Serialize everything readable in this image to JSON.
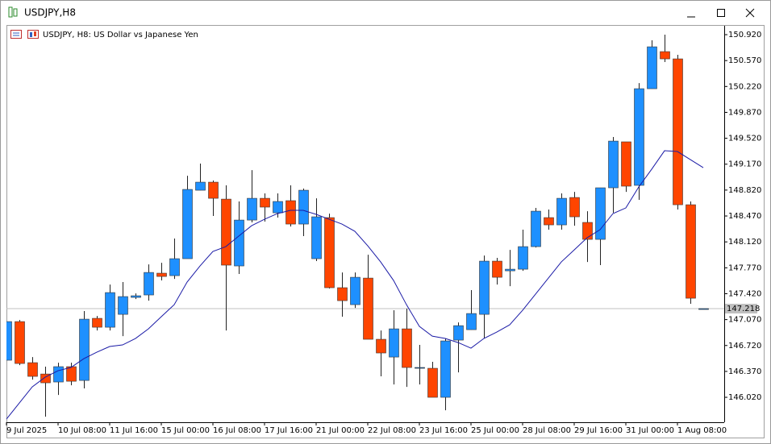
{
  "window_title": "USDJPY,H8",
  "chart_data": {
    "type": "candlestick",
    "title": "USDJPY, H8:  US Dollar vs Japanese Yen",
    "categories": [
      "9 Jul 2025",
      null,
      null,
      null,
      "10 Jul 08:00",
      null,
      null,
      null,
      "11 Jul 16:00",
      null,
      null,
      null,
      "15 Jul 00:00",
      null,
      null,
      null,
      "16 Jul 08:00",
      null,
      null,
      null,
      "17 Jul 16:00",
      null,
      null,
      null,
      "21 Jul 00:00",
      null,
      null,
      null,
      "22 Jul 08:00",
      null,
      null,
      null,
      "23 Jul 16:00",
      null,
      null,
      null,
      "25 Jul 00:00",
      null,
      null,
      null,
      "28 Jul 08:00",
      null,
      null,
      null,
      "29 Jul 16:00",
      null,
      null,
      null,
      "31 Jul 00:00",
      null,
      null,
      null,
      "1 Aug 08:00",
      null,
      null
    ],
    "open": [
      146.521,
      147.043,
      146.488,
      146.335,
      146.227,
      146.434,
      146.248,
      147.087,
      146.967,
      147.141,
      147.37,
      147.403,
      147.697,
      147.664,
      147.893,
      148.818,
      148.927,
      148.698,
      147.795,
      148.415,
      148.709,
      148.513,
      148.677,
      148.361,
      147.893,
      148.448,
      147.501,
      147.272,
      147.631,
      146.804,
      146.564,
      146.945,
      146.423,
      146.412,
      146.02,
      146.793,
      146.934,
      147.141,
      147.86,
      147.729,
      147.751,
      148.056,
      148.448,
      148.35,
      148.72,
      148.383,
      148.154,
      148.851,
      149.472,
      148.884,
      150.19,
      150.691,
      150.593,
      148.622,
      147.218
    ],
    "high": [
      147.043,
      147.065,
      146.564,
      146.434,
      146.488,
      146.488,
      147.185,
      147.119,
      147.544,
      147.577,
      147.424,
      147.816,
      147.838,
      148.165,
      149.014,
      149.178,
      148.949,
      148.884,
      148.666,
      149.09,
      148.775,
      148.775,
      148.884,
      148.84,
      148.709,
      148.502,
      147.707,
      147.707,
      147.947,
      146.923,
      147.196,
      147.218,
      146.728,
      146.499,
      146.815,
      147.032,
      147.468,
      147.936,
      147.904,
      148.012,
      148.285,
      148.579,
      148.557,
      148.775,
      148.796,
      148.535,
      148.851,
      149.537,
      149.472,
      150.266,
      150.844,
      150.92,
      150.648,
      148.666,
      147.218
    ],
    "low": [
      146.521,
      146.455,
      146.259,
      145.758,
      146.052,
      146.183,
      146.14,
      146.923,
      146.923,
      146.847,
      147.348,
      147.326,
      147.599,
      147.62,
      147.893,
      148.818,
      148.47,
      146.923,
      147.686,
      148.383,
      148.394,
      148.448,
      148.328,
      148.198,
      147.86,
      147.49,
      147.109,
      147.228,
      146.804,
      146.303,
      146.194,
      146.161,
      146.194,
      146.02,
      145.845,
      146.357,
      146.934,
      146.815,
      147.544,
      147.522,
      147.729,
      148.045,
      148.285,
      148.285,
      148.339,
      147.849,
      147.806,
      148.513,
      148.796,
      148.688,
      150.19,
      150.55,
      148.557,
      147.283,
      147.218
    ],
    "close": [
      147.043,
      146.477,
      146.303,
      146.216,
      146.434,
      146.237,
      147.076,
      146.967,
      147.435,
      147.381,
      147.392,
      147.707,
      147.653,
      147.893,
      148.829,
      148.927,
      148.709,
      147.806,
      148.415,
      148.709,
      148.59,
      148.666,
      148.361,
      148.818,
      148.459,
      147.501,
      147.326,
      147.642,
      146.804,
      146.619,
      146.945,
      146.423,
      146.423,
      146.02,
      146.782,
      146.988,
      147.152,
      147.86,
      147.642,
      147.751,
      148.056,
      148.535,
      148.35,
      148.709,
      148.459,
      148.154,
      148.851,
      149.482,
      148.873,
      150.19,
      150.756,
      150.593,
      148.622,
      147.359,
      147.218
    ],
    "bull_color": "#1e90ff",
    "bear_color": "#ff4500",
    "ma": {
      "color": "#1a1aa6",
      "values": [
        145.726,
        145.943,
        146.161,
        146.292,
        146.379,
        146.423,
        146.542,
        146.63,
        146.706,
        146.728,
        146.815,
        146.945,
        147.109,
        147.272,
        147.577,
        147.795,
        147.991,
        148.056,
        148.198,
        148.339,
        148.426,
        148.502,
        148.546,
        148.546,
        148.492,
        148.426,
        148.361,
        148.263,
        148.067,
        147.849,
        147.599,
        147.272,
        146.978,
        146.847,
        146.815,
        146.76,
        146.684,
        146.815,
        146.902,
        147.0,
        147.196,
        147.413,
        147.631,
        147.849,
        148.012,
        148.176,
        148.285,
        148.502,
        148.579,
        148.862,
        149.101,
        149.352,
        149.341,
        149.232,
        149.123
      ]
    },
    "current_price": 147.218,
    "ylim": [
      145.683,
      151.04
    ],
    "yticks": [
      {
        "value": 146.02,
        "label": "146.020"
      },
      {
        "value": 146.37,
        "label": "146.370"
      },
      {
        "value": 146.72,
        "label": "146.720"
      },
      {
        "value": 147.07,
        "label": "147.070"
      },
      {
        "value": 147.42,
        "label": "147.420"
      },
      {
        "value": 147.77,
        "label": "147.770"
      },
      {
        "value": 148.12,
        "label": "148.120"
      },
      {
        "value": 148.47,
        "label": "148.470"
      },
      {
        "value": 148.82,
        "label": "148.820"
      },
      {
        "value": 149.17,
        "label": "149.170"
      },
      {
        "value": 149.52,
        "label": "149.520"
      },
      {
        "value": 149.87,
        "label": "149.870"
      },
      {
        "value": 150.22,
        "label": "150.220"
      },
      {
        "value": 150.57,
        "label": "150.570"
      },
      {
        "value": 150.92,
        "label": "150.920"
      }
    ],
    "grid": false
  }
}
